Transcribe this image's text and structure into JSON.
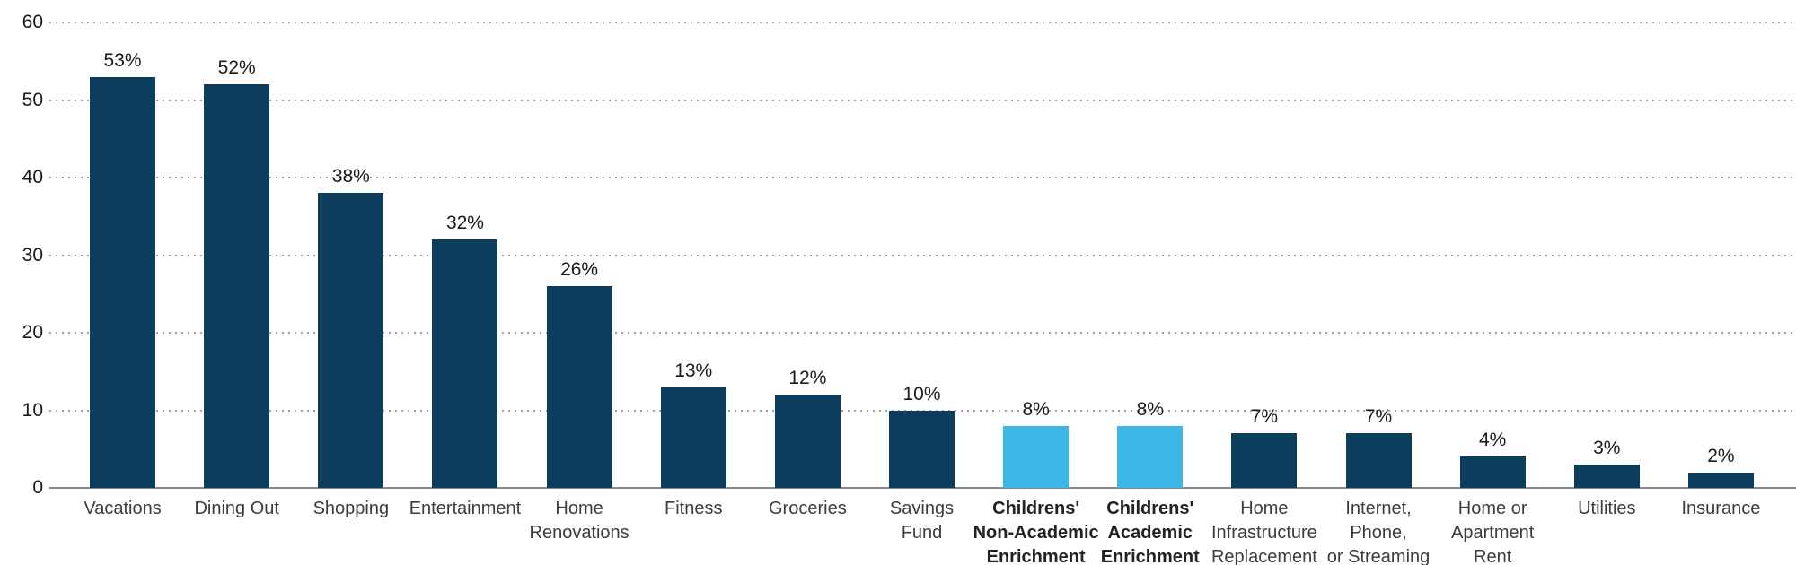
{
  "chart_data": {
    "type": "bar",
    "title": "",
    "xlabel": "",
    "ylabel": "",
    "ylim": [
      0,
      60
    ],
    "yticks": [
      0,
      10,
      20,
      30,
      40,
      50,
      60
    ],
    "grid": "horizontal-dotted",
    "legend": "none",
    "categories": [
      "Vacations",
      "Dining Out",
      "Shopping",
      "Entertainment",
      "Home\nRenovations",
      "Fitness",
      "Groceries",
      "Savings\nFund",
      "Childrens'\nNon-Academic\nEnrichment",
      "Childrens'\nAcademic\nEnrichment",
      "Home\nInfrastructure\nReplacement",
      "Internet,\nPhone,\nor Streaming",
      "Home or\nApartment\nRent",
      "Utilities",
      "Insurance"
    ],
    "values": [
      53,
      52,
      38,
      32,
      26,
      13,
      12,
      10,
      8,
      8,
      7,
      7,
      4,
      3,
      2
    ],
    "value_labels": [
      "53%",
      "52%",
      "38%",
      "32%",
      "26%",
      "13%",
      "12%",
      "10%",
      "8%",
      "8%",
      "7%",
      "7%",
      "4%",
      "3%",
      "2%"
    ],
    "highlighted_indices": [
      8,
      9
    ],
    "colors": {
      "bar": "#0d3d5c",
      "bar_highlight": "#3eb6e6",
      "gridline": "#9e9e9e",
      "axis_line": "#8a8a8a",
      "tick_text": "#1a1a1a",
      "value_text": "#1a1a1a",
      "category_text": "#3c3c3c",
      "category_text_highlight": "#222222",
      "background": "#ffffff"
    }
  }
}
